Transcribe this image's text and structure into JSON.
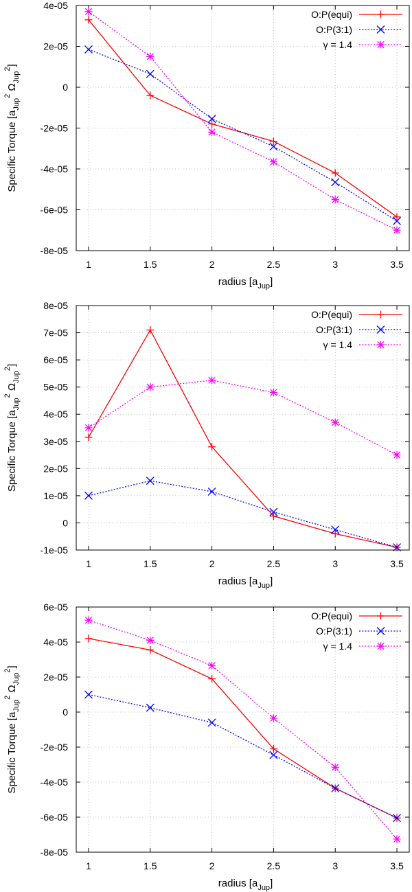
{
  "chart_data": [
    {
      "type": "line",
      "xlabel": "radius [a_Jup]",
      "ylabel": "Specific Torque [a_Jup^2 Ω_Jup^2]",
      "xlim": [
        0.9,
        3.6
      ],
      "ylim": [
        -8e-05,
        4e-05
      ],
      "xticks": [
        1,
        1.5,
        2,
        2.5,
        3,
        3.5
      ],
      "xtick_labels": [
        "1",
        "1.5",
        "2",
        "2.5",
        "3",
        "3.5"
      ],
      "yticks": [
        -8e-05,
        -6e-05,
        -4e-05,
        -2e-05,
        0,
        2e-05,
        4e-05
      ],
      "ytick_labels": [
        "-8e-05",
        "-6e-05",
        "-4e-05",
        "-2e-05",
        "0",
        "2e-05",
        "4e-05"
      ],
      "grid": true,
      "legend_position": "top-right",
      "x": [
        1,
        1.5,
        2,
        2.5,
        3,
        3.5
      ],
      "series": [
        {
          "name": "O:P(equi)",
          "color": "#ff0000",
          "marker": "plus",
          "line": "solid",
          "values": [
            3.3e-05,
            -4e-06,
            -1.8e-05,
            -2.65e-05,
            -4.2e-05,
            -6.35e-05
          ]
        },
        {
          "name": "O:P(3:1)",
          "color": "#0000ff",
          "marker": "cross",
          "line": "dotted",
          "values": [
            1.85e-05,
            6.5e-06,
            -1.55e-05,
            -2.9e-05,
            -4.65e-05,
            -6.55e-05
          ]
        },
        {
          "name": "γ = 1.4",
          "color": "#ff00ff",
          "marker": "star",
          "line": "dotted",
          "values": [
            3.7e-05,
            1.5e-05,
            -2.2e-05,
            -3.65e-05,
            -5.5e-05,
            -7e-05
          ]
        }
      ]
    },
    {
      "type": "line",
      "xlabel": "radius [a_Jup]",
      "ylabel": "Specific Torque [a_Jup^2 Ω_Jup^2]",
      "xlim": [
        0.9,
        3.6
      ],
      "ylim": [
        -1e-05,
        8e-05
      ],
      "xticks": [
        1,
        1.5,
        2,
        2.5,
        3,
        3.5
      ],
      "xtick_labels": [
        "1",
        "1.5",
        "2",
        "2.5",
        "3",
        "3.5"
      ],
      "yticks": [
        -1e-05,
        0,
        1e-05,
        2e-05,
        3e-05,
        4e-05,
        5e-05,
        6e-05,
        7e-05,
        8e-05
      ],
      "ytick_labels": [
        "-1e-05",
        "0",
        "1e-05",
        "2e-05",
        "3e-05",
        "4e-05",
        "5e-05",
        "6e-05",
        "7e-05",
        "8e-05"
      ],
      "grid": true,
      "legend_position": "top-right",
      "x": [
        1,
        1.5,
        2,
        2.5,
        3,
        3.5
      ],
      "series": [
        {
          "name": "O:P(equi)",
          "color": "#ff0000",
          "marker": "plus",
          "line": "solid",
          "values": [
            3.15e-05,
            7.1e-05,
            2.8e-05,
            2.5e-06,
            -4e-06,
            -9e-06
          ]
        },
        {
          "name": "O:P(3:1)",
          "color": "#0000ff",
          "marker": "cross",
          "line": "dotted",
          "values": [
            1e-05,
            1.55e-05,
            1.15e-05,
            4e-06,
            -2.5e-06,
            -9e-06
          ]
        },
        {
          "name": "γ = 1.4",
          "color": "#ff00ff",
          "marker": "star",
          "line": "dotted",
          "values": [
            3.5e-05,
            5e-05,
            5.25e-05,
            4.8e-05,
            3.7e-05,
            2.5e-05
          ]
        }
      ]
    },
    {
      "type": "line",
      "xlabel": "radius [a_Jup]",
      "ylabel": "Specific Torque [a_Jup^2 Ω_Jup^2]",
      "xlim": [
        0.9,
        3.6
      ],
      "ylim": [
        -8e-05,
        6e-05
      ],
      "xticks": [
        1,
        1.5,
        2,
        2.5,
        3,
        3.5
      ],
      "xtick_labels": [
        "1",
        "1.5",
        "2",
        "2.5",
        "3",
        "3.5"
      ],
      "yticks": [
        -8e-05,
        -6e-05,
        -4e-05,
        -2e-05,
        0,
        2e-05,
        4e-05,
        6e-05
      ],
      "ytick_labels": [
        "-8e-05",
        "-6e-05",
        "-4e-05",
        "-2e-05",
        "0",
        "2e-05",
        "4e-05",
        "6e-05"
      ],
      "grid": true,
      "legend_position": "top-right",
      "x": [
        1,
        1.5,
        2,
        2.5,
        3,
        3.5
      ],
      "series": [
        {
          "name": "O:P(equi)",
          "color": "#ff0000",
          "marker": "plus",
          "line": "solid",
          "values": [
            4.2e-05,
            3.55e-05,
            1.9e-05,
            -2.1e-05,
            -4.35e-05,
            -6.05e-05
          ]
        },
        {
          "name": "O:P(3:1)",
          "color": "#0000ff",
          "marker": "cross",
          "line": "dotted",
          "values": [
            1e-05,
            2.5e-06,
            -6e-06,
            -2.45e-05,
            -4.35e-05,
            -6.05e-05
          ]
        },
        {
          "name": "γ = 1.4",
          "color": "#ff00ff",
          "marker": "star",
          "line": "dotted",
          "values": [
            5.25e-05,
            4.1e-05,
            2.65e-05,
            -3.5e-06,
            -3.15e-05,
            -7.25e-05
          ]
        }
      ]
    }
  ]
}
